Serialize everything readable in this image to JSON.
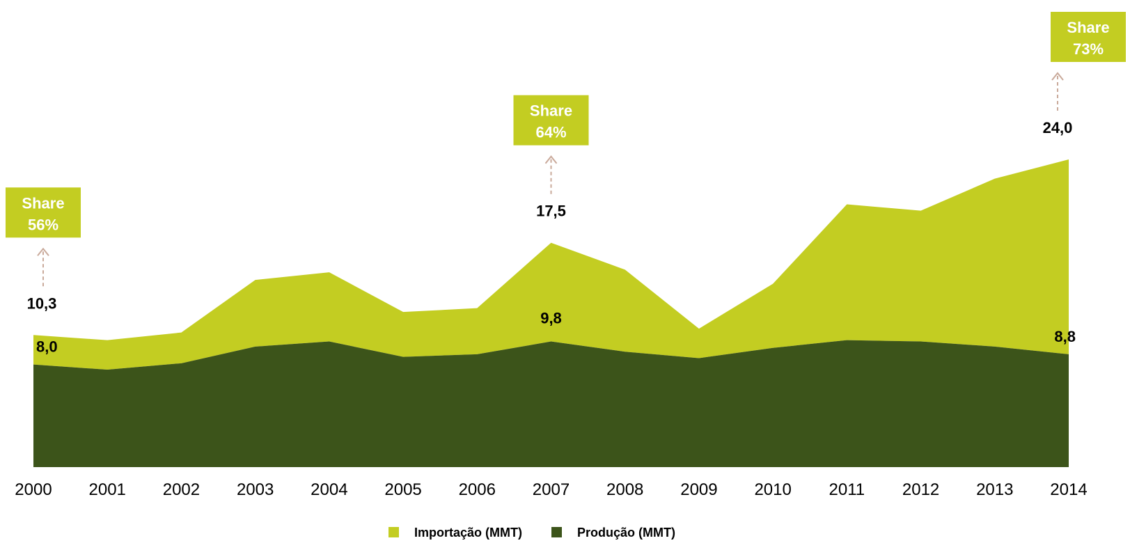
{
  "chart_data": {
    "type": "area",
    "stacked": true,
    "x": [
      "2000",
      "2001",
      "2002",
      "2003",
      "2004",
      "2005",
      "2006",
      "2007",
      "2008",
      "2009",
      "2010",
      "2011",
      "2012",
      "2013",
      "2014"
    ],
    "series": [
      {
        "name": "Produção (MMT)",
        "color": "#3c541a",
        "values": [
          8.0,
          7.6,
          8.1,
          9.4,
          9.8,
          8.6,
          8.8,
          9.8,
          9.0,
          8.5,
          9.3,
          9.9,
          9.8,
          9.4,
          8.8
        ]
      },
      {
        "name": "Importação (MMT)",
        "color": "#c3cd22",
        "values": [
          2.3,
          2.3,
          2.4,
          5.2,
          5.4,
          3.5,
          3.6,
          7.7,
          6.4,
          2.3,
          5.0,
          10.6,
          10.2,
          13.1,
          15.2
        ]
      }
    ],
    "ylim": [
      0,
      24
    ],
    "grid": false,
    "legend": "bottom-center",
    "annotations": [
      {
        "year": "2000",
        "total_label": "10,3",
        "base_label": "8,0",
        "share_title": "Share",
        "share_value": "56%"
      },
      {
        "year": "2007",
        "total_label": "17,5",
        "base_label": "9,8",
        "share_title": "Share",
        "share_value": "64%"
      },
      {
        "year": "2014",
        "total_label": "24,0",
        "base_label": "8,8",
        "share_title": "Share",
        "share_value": "73%"
      }
    ],
    "legend_items": [
      {
        "label": "Importação (MMT)",
        "color": "#c3cd22"
      },
      {
        "label": "Produção (MMT)",
        "color": "#3c541a"
      }
    ],
    "callout_color": "#c3cd22",
    "arrow_color": "#c9a99a"
  }
}
